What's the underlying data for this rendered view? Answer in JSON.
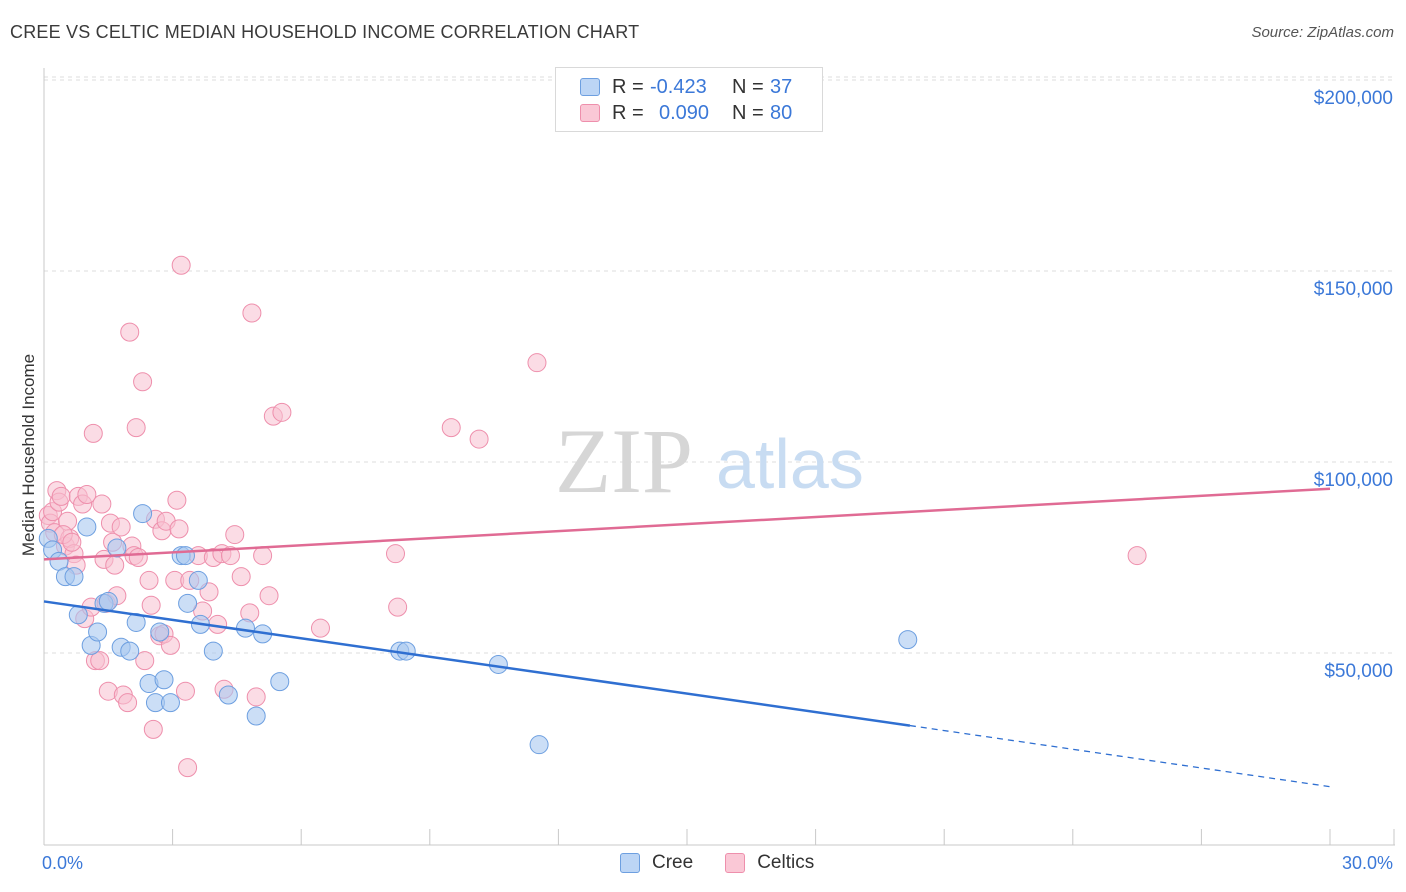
{
  "header": {
    "title": "CREE VS CELTIC MEDIAN HOUSEHOLD INCOME CORRELATION CHART",
    "source": "Source: ZipAtlas.com"
  },
  "watermark": {
    "zip": "ZIP",
    "atlas": "atlas"
  },
  "legend_top": {
    "rows": [
      {
        "r_label": "R =",
        "r_value": "-0.423",
        "n_label": "N =",
        "n_value": "37"
      },
      {
        "r_label": "R =",
        "r_value": "0.090",
        "n_label": "N =",
        "n_value": "80"
      }
    ]
  },
  "legend_bottom": {
    "cree": "Cree",
    "celtics": "Celtics"
  },
  "colors": {
    "cree_fill": "#a9c8f0",
    "cree_stroke": "#6d9fe0",
    "cree_line": "#2f6fd1",
    "celtics_fill": "#f7c0d0",
    "celtics_stroke": "#ee8fac",
    "celtics_line": "#e06b94",
    "axis_label": "#3b78d8",
    "grid": "#dddddd"
  },
  "chart_data": {
    "type": "scatter",
    "title": "CREE VS CELTIC MEDIAN HOUSEHOLD INCOME CORRELATION CHART",
    "xlabel": "",
    "ylabel": "Median Household Income",
    "xlim": [
      0,
      30
    ],
    "ylim": [
      0,
      210000
    ],
    "x_tick_labels": [
      "0.0%",
      "30.0%"
    ],
    "y_ticks": [
      50000,
      100000,
      150000,
      200000
    ],
    "y_tick_labels": [
      "$50,000",
      "$100,000",
      "$150,000",
      "$200,000"
    ],
    "series": [
      {
        "name": "Cree",
        "r": -0.423,
        "n": 37,
        "trend": {
          "x0": 0,
          "y0": 63500,
          "x1": 20.2,
          "y1": 31000,
          "x_dash_end": 30,
          "y_dash_end": 15000
        },
        "points": [
          [
            0.1,
            80000
          ],
          [
            0.2,
            77000
          ],
          [
            0.35,
            74000
          ],
          [
            0.5,
            70000
          ],
          [
            0.7,
            70000
          ],
          [
            0.8,
            60000
          ],
          [
            1.0,
            83000
          ],
          [
            1.1,
            52000
          ],
          [
            1.25,
            55500
          ],
          [
            1.4,
            63000
          ],
          [
            1.5,
            63500
          ],
          [
            1.7,
            77500
          ],
          [
            1.8,
            51500
          ],
          [
            2.0,
            50500
          ],
          [
            2.15,
            58000
          ],
          [
            2.3,
            86500
          ],
          [
            2.45,
            42000
          ],
          [
            2.6,
            37000
          ],
          [
            2.7,
            55500
          ],
          [
            2.8,
            43000
          ],
          [
            2.95,
            37000
          ],
          [
            3.2,
            75500
          ],
          [
            3.3,
            75500
          ],
          [
            3.35,
            63000
          ],
          [
            3.6,
            69000
          ],
          [
            3.65,
            57500
          ],
          [
            3.95,
            50500
          ],
          [
            4.3,
            39000
          ],
          [
            4.7,
            56500
          ],
          [
            4.95,
            33500
          ],
          [
            5.1,
            55000
          ],
          [
            5.5,
            42500
          ],
          [
            8.3,
            50500
          ],
          [
            8.45,
            50500
          ],
          [
            10.6,
            47000
          ],
          [
            11.55,
            26000
          ],
          [
            20.15,
            53500
          ]
        ]
      },
      {
        "name": "Celtics",
        "r": 0.09,
        "n": 80,
        "trend": {
          "x0": 0,
          "y0": 74500,
          "x1": 30,
          "y1": 93000
        },
        "points": [
          [
            0.1,
            86000
          ],
          [
            0.15,
            84000
          ],
          [
            0.2,
            87000
          ],
          [
            0.25,
            81500
          ],
          [
            0.3,
            92500
          ],
          [
            0.35,
            89500
          ],
          [
            0.4,
            91000
          ],
          [
            0.5,
            78000
          ],
          [
            0.55,
            84500
          ],
          [
            0.6,
            80000
          ],
          [
            0.7,
            76000
          ],
          [
            0.75,
            73000
          ],
          [
            0.8,
            91000
          ],
          [
            0.9,
            89000
          ],
          [
            0.95,
            59000
          ],
          [
            1.0,
            91500
          ],
          [
            1.1,
            62000
          ],
          [
            1.15,
            107500
          ],
          [
            1.2,
            48000
          ],
          [
            1.3,
            48000
          ],
          [
            1.4,
            74500
          ],
          [
            1.45,
            63000
          ],
          [
            1.5,
            40000
          ],
          [
            1.55,
            84000
          ],
          [
            1.6,
            79000
          ],
          [
            1.65,
            73000
          ],
          [
            1.7,
            65000
          ],
          [
            1.8,
            83000
          ],
          [
            1.85,
            39000
          ],
          [
            1.95,
            37000
          ],
          [
            2.0,
            134000
          ],
          [
            2.05,
            78000
          ],
          [
            2.1,
            75500
          ],
          [
            2.15,
            109000
          ],
          [
            2.2,
            75000
          ],
          [
            2.3,
            121000
          ],
          [
            2.35,
            48000
          ],
          [
            2.45,
            69000
          ],
          [
            2.5,
            62500
          ],
          [
            2.55,
            30000
          ],
          [
            2.6,
            85000
          ],
          [
            2.7,
            54500
          ],
          [
            2.75,
            82000
          ],
          [
            2.8,
            55000
          ],
          [
            2.85,
            84500
          ],
          [
            2.95,
            52000
          ],
          [
            3.05,
            69000
          ],
          [
            3.1,
            90000
          ],
          [
            3.15,
            82500
          ],
          [
            3.2,
            151500
          ],
          [
            3.3,
            40000
          ],
          [
            3.35,
            20000
          ],
          [
            3.4,
            69000
          ],
          [
            3.6,
            75500
          ],
          [
            3.7,
            61000
          ],
          [
            3.85,
            66000
          ],
          [
            3.95,
            75000
          ],
          [
            4.05,
            57500
          ],
          [
            4.15,
            76000
          ],
          [
            4.2,
            40500
          ],
          [
            4.35,
            75500
          ],
          [
            4.45,
            81000
          ],
          [
            4.6,
            70000
          ],
          [
            4.8,
            60500
          ],
          [
            4.85,
            139000
          ],
          [
            4.95,
            38500
          ],
          [
            5.1,
            75500
          ],
          [
            5.25,
            65000
          ],
          [
            5.35,
            112000
          ],
          [
            5.55,
            113000
          ],
          [
            6.45,
            56500
          ],
          [
            8.2,
            76000
          ],
          [
            8.25,
            62000
          ],
          [
            9.5,
            109000
          ],
          [
            10.15,
            106000
          ],
          [
            11.5,
            126000
          ],
          [
            25.5,
            75500
          ],
          [
            0.45,
            81000
          ],
          [
            1.35,
            89000
          ],
          [
            0.65,
            79000
          ]
        ]
      }
    ]
  }
}
